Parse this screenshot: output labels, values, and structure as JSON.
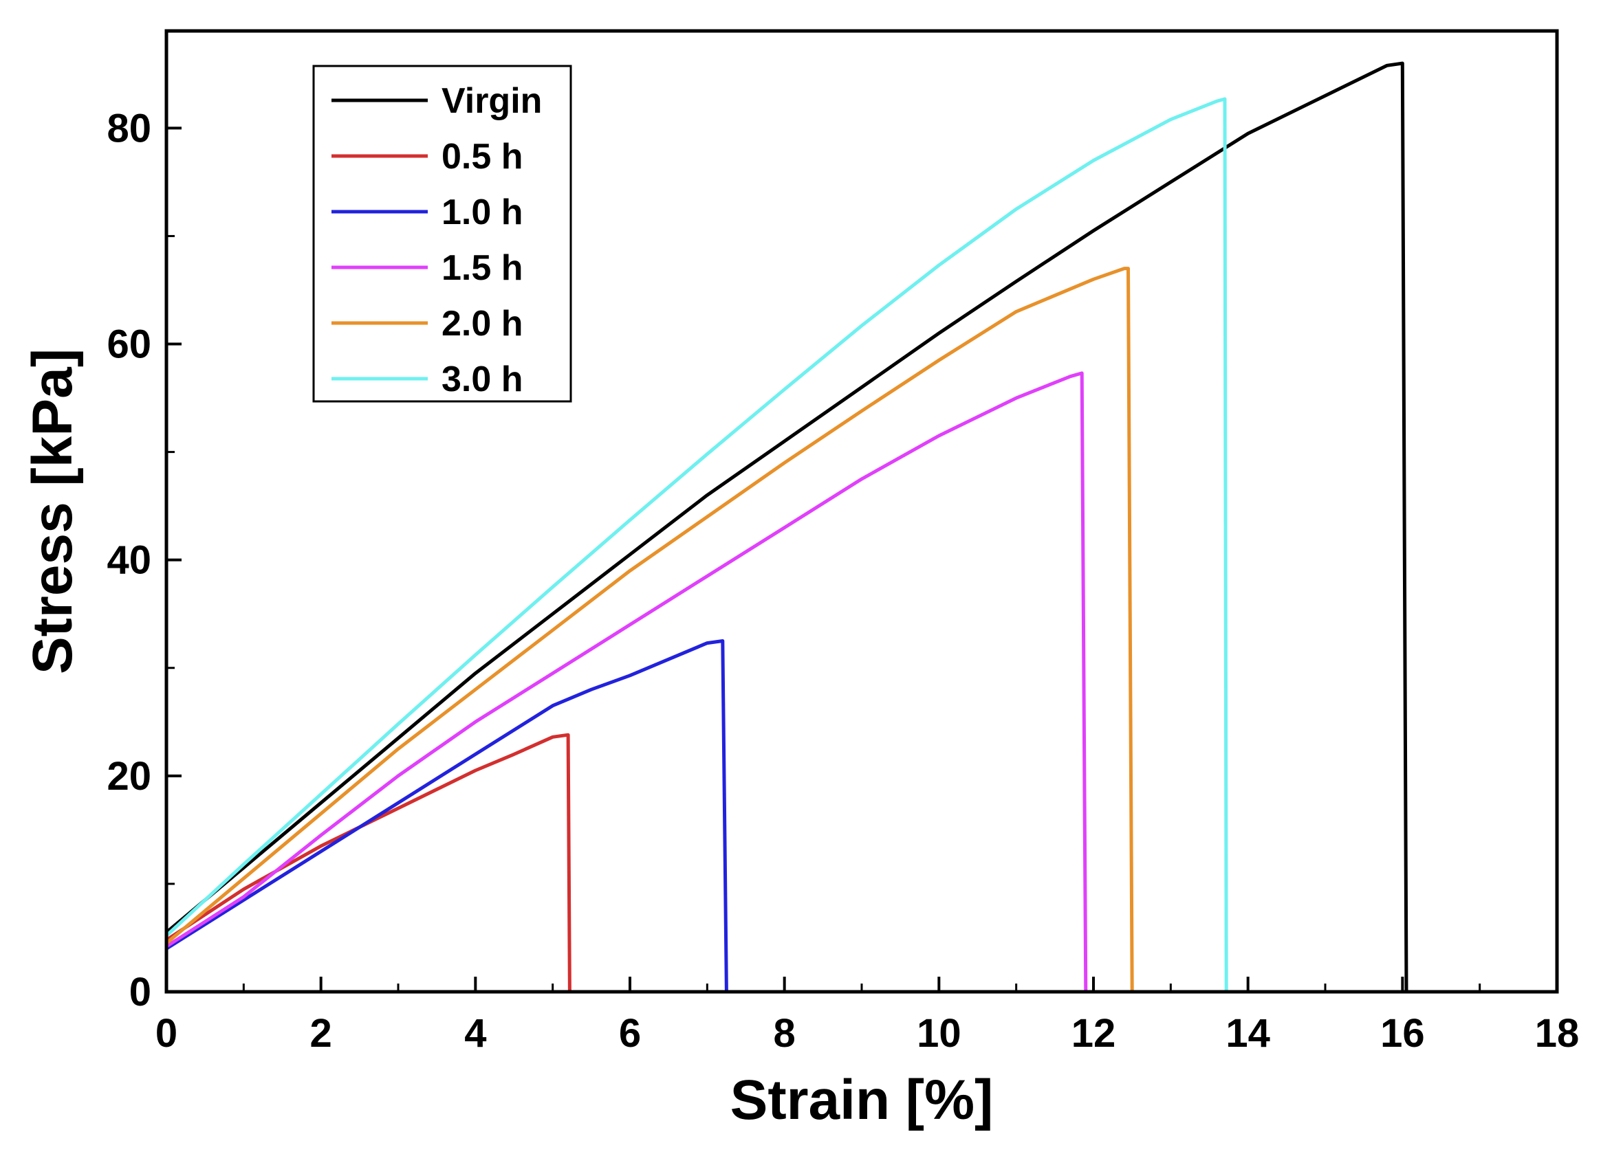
{
  "chart_data": {
    "type": "line",
    "title": "",
    "xlabel": "Strain [%]",
    "ylabel": "Stress [kPa]",
    "xlim": [
      0,
      18
    ],
    "ylim": [
      0,
      89
    ],
    "xticks": [
      0,
      2,
      4,
      6,
      8,
      10,
      12,
      14,
      16,
      18
    ],
    "xtick_labels": [
      "0",
      "2",
      "4",
      "6",
      "8",
      "10",
      "12",
      "14",
      "16",
      "18"
    ],
    "yticks": [
      0,
      20,
      40,
      60,
      80
    ],
    "ytick_labels": [
      "0",
      "20",
      "40",
      "60",
      "80"
    ],
    "grid": false,
    "legend_position": "top-left",
    "series": [
      {
        "name": "Virgin",
        "color": "#000000",
        "x": [
          0,
          1,
          2,
          3,
          4,
          5,
          6,
          7,
          8,
          9,
          10,
          11,
          12,
          13,
          14,
          15,
          15.8,
          16.0,
          16.05
        ],
        "y": [
          5.5,
          11.5,
          17.5,
          23.5,
          29.5,
          35.0,
          40.5,
          46.0,
          51.0,
          56.0,
          61.0,
          65.8,
          70.5,
          75.0,
          79.5,
          83.0,
          85.8,
          86.0,
          0
        ]
      },
      {
        "name": "0.5 h",
        "color": "#d32f2f",
        "x": [
          0,
          1,
          2,
          3,
          4,
          4.5,
          5.0,
          5.2,
          5.22
        ],
        "y": [
          4.8,
          9.5,
          13.5,
          17.0,
          20.5,
          22.0,
          23.6,
          23.8,
          0
        ]
      },
      {
        "name": "1.0 h",
        "color": "#2222dd",
        "x": [
          0,
          1,
          2,
          3,
          4,
          5,
          5.5,
          6.0,
          6.5,
          7.0,
          7.2,
          7.25
        ],
        "y": [
          4.0,
          8.5,
          13.0,
          17.5,
          22.0,
          26.5,
          28.0,
          29.3,
          30.8,
          32.3,
          32.5,
          0
        ]
      },
      {
        "name": "1.5 h",
        "color": "#e040fb",
        "x": [
          0,
          1,
          2,
          3,
          4,
          5,
          6,
          7,
          8,
          9,
          10,
          11,
          11.7,
          11.85,
          11.9
        ],
        "y": [
          4.2,
          8.8,
          14.5,
          20.0,
          25.0,
          29.5,
          34.0,
          38.5,
          43.0,
          47.5,
          51.5,
          55.0,
          57.0,
          57.3,
          0
        ]
      },
      {
        "name": "2.0 h",
        "color": "#e8912a",
        "x": [
          0,
          1,
          2,
          3,
          4,
          5,
          6,
          7,
          8,
          9,
          10,
          11,
          12,
          12.4,
          12.45,
          12.5
        ],
        "y": [
          4.5,
          10.5,
          16.5,
          22.5,
          28.0,
          33.5,
          39.0,
          44.0,
          49.0,
          53.8,
          58.5,
          63.0,
          66.0,
          67.0,
          67.0,
          0
        ]
      },
      {
        "name": "3.0 h",
        "color": "#6ff0f0",
        "x": [
          0,
          1,
          2,
          3,
          4,
          5,
          6,
          7,
          8,
          9,
          10,
          11,
          12,
          13,
          13.6,
          13.7,
          13.72
        ],
        "y": [
          5.2,
          11.8,
          18.3,
          24.8,
          31.2,
          37.5,
          43.7,
          49.8,
          55.8,
          61.7,
          67.3,
          72.5,
          77.0,
          80.8,
          82.5,
          82.7,
          0
        ]
      }
    ]
  }
}
